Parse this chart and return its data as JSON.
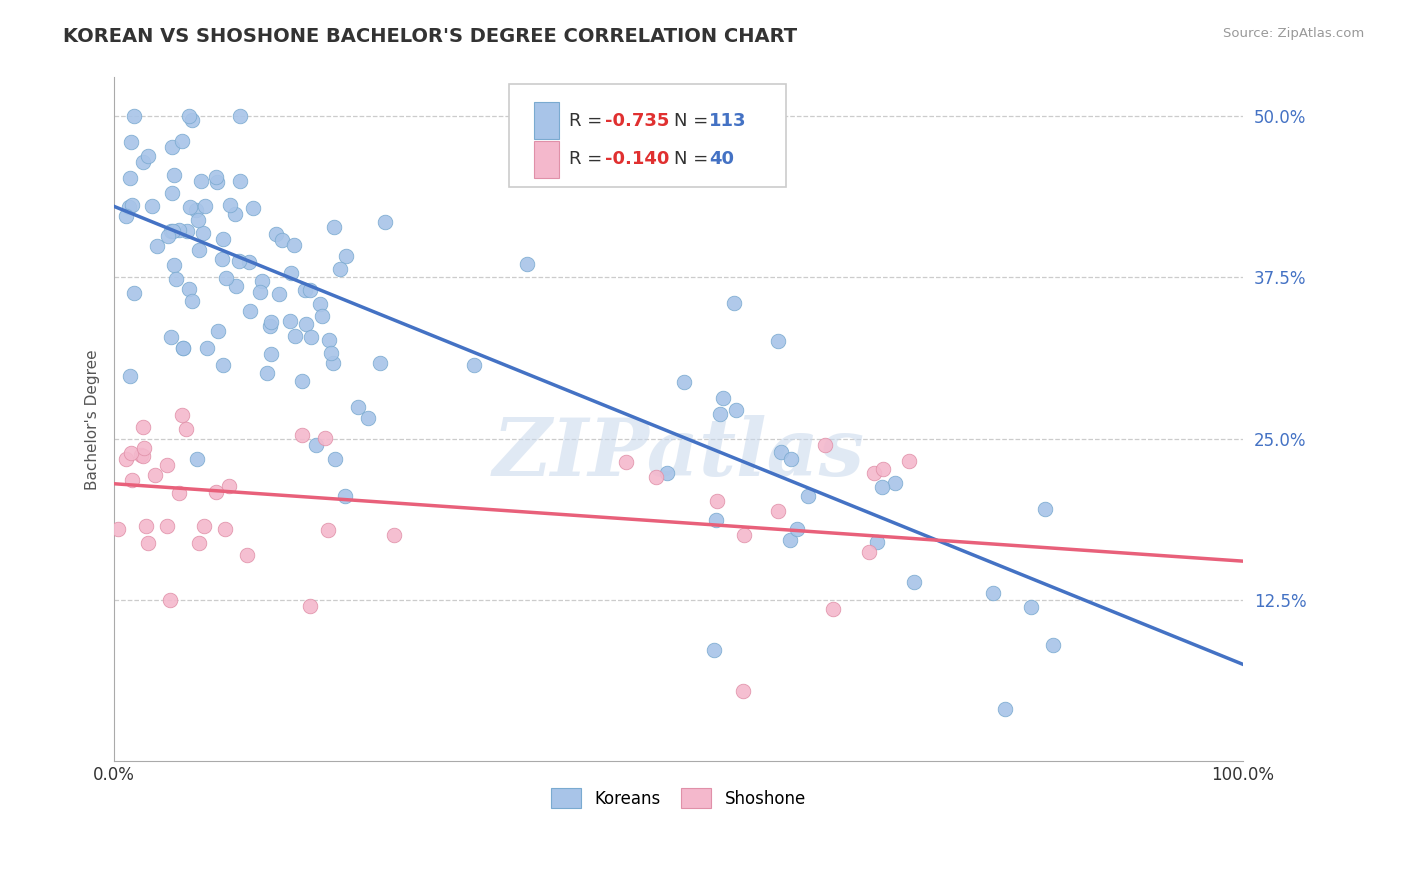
{
  "title": "KOREAN VS SHOSHONE BACHELOR'S DEGREE CORRELATION CHART",
  "source": "Source: ZipAtlas.com",
  "ylabel": "Bachelor's Degree",
  "xlim": [
    0.0,
    1.0
  ],
  "ylim": [
    0.0,
    0.53
  ],
  "yticks": [
    0.125,
    0.25,
    0.375,
    0.5
  ],
  "yticklabels": [
    "12.5%",
    "25.0%",
    "37.5%",
    "50.0%"
  ],
  "grid_color": "#cccccc",
  "background_color": "#ffffff",
  "korean_fill_color": "#a8c4e8",
  "korean_edge_color": "#7aaad0",
  "shoshone_fill_color": "#f4b8cc",
  "shoshone_edge_color": "#e090a8",
  "korean_line_color": "#4472c4",
  "shoshone_line_color": "#e8607a",
  "korean_line_y0": 0.43,
  "korean_line_y1": 0.075,
  "shoshone_line_y0": 0.215,
  "shoshone_line_y1": 0.155,
  "korean_R": "-0.735",
  "korean_N": "113",
  "shoshone_R": "-0.140",
  "shoshone_N": "40",
  "watermark": "ZIPatlas",
  "title_color": "#333333",
  "title_fontsize": 14,
  "ytick_color": "#4472c4",
  "xtick_color": "#333333",
  "legend_R_color": "#e03030",
  "legend_N_color": "#4472c4",
  "legend_text_color": "#333333"
}
